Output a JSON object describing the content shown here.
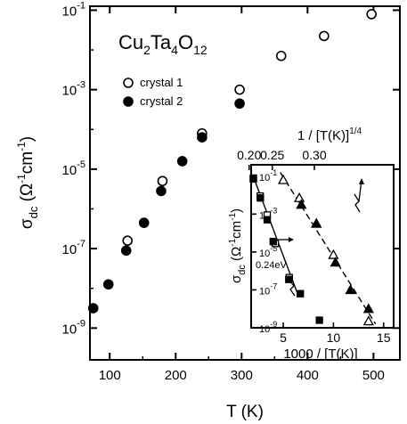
{
  "chart_data": [
    {
      "type": "scatter",
      "title": "",
      "formula_label": {
        "base": [
          "Cu",
          "Ta",
          "O"
        ],
        "subs": [
          "2",
          "4",
          "12"
        ]
      },
      "xlabel": "T (K)",
      "ylabel": {
        "main": "σ",
        "sub": "dc",
        "unit_open": " (Ω",
        "sup1": "-1",
        "unit_mid": "cm",
        "sup2": "-1",
        "unit_close": ")"
      },
      "xlim": [
        70,
        540
      ],
      "ylim_log10": [
        -9.8,
        -0.9
      ],
      "x_ticks": [
        100,
        200,
        300,
        400,
        500
      ],
      "x_tick_labels": [
        "100",
        "200",
        "300",
        "400",
        "500"
      ],
      "y_ticks_log10": [
        -9,
        -7,
        -5,
        -3,
        -1
      ],
      "y_tick_labels": [
        {
          "base": "10",
          "exp": "-9"
        },
        {
          "base": "10",
          "exp": "-7"
        },
        {
          "base": "10",
          "exp": "-5"
        },
        {
          "base": "10",
          "exp": "-3"
        },
        {
          "base": "10",
          "exp": "-1"
        }
      ],
      "legend_position": "upper-left",
      "series": [
        {
          "name": "crystal 1",
          "marker": "open-circle",
          "x": [
            127,
            180,
            240,
            297,
            360,
            425,
            497
          ],
          "y_log10": [
            -6.8,
            -5.3,
            -4.1,
            -3.0,
            -2.15,
            -1.65,
            -1.1
          ]
        },
        {
          "name": "crystal 2",
          "marker": "filled-circle",
          "x": [
            75,
            98,
            125,
            152,
            178,
            210,
            240,
            297
          ],
          "y_log10": [
            -8.5,
            -7.9,
            -7.05,
            -6.35,
            -5.55,
            -4.8,
            -4.2,
            -3.35
          ]
        }
      ]
    },
    {
      "type": "scatter",
      "inset": true,
      "xlabel": "1000 / [T(K)]",
      "ylabel": {
        "main": "σ",
        "sub": "dc",
        "unit_open": " (Ω",
        "sup1": "-1",
        "unit_mid": "cm",
        "sup2": "-1",
        "unit_close": ")"
      },
      "top_xlabel": {
        "text": "1 / [T(K)]",
        "sup": "1/4"
      },
      "xlim": [
        1.8,
        16
      ],
      "ylim_log10": [
        -9,
        -0.4
      ],
      "x_ticks": [
        5,
        10,
        15
      ],
      "x_tick_labels": [
        "5",
        "10",
        "15"
      ],
      "top_ticks": [
        0.2,
        0.25,
        0.3
      ],
      "top_tick_labels": [
        "0.20",
        "0.25",
        "0.30"
      ],
      "y_ticks_log10": [
        -9,
        -7,
        -5,
        -3,
        -1
      ],
      "y_tick_labels": [
        {
          "base": "10",
          "exp": "-9"
        },
        {
          "base": "10",
          "exp": "-7"
        },
        {
          "base": "10",
          "exp": "-5"
        },
        {
          "base": "10",
          "exp": "-3"
        },
        {
          "base": "10",
          "exp": "-1"
        }
      ],
      "annotation": "0.24eV",
      "series": [
        {
          "marker": "open-square",
          "x": [
            2.02,
            2.7,
            3.4,
            4.2,
            5.6
          ],
          "y_log10": [
            -1.1,
            -2.05,
            -3.05,
            -4.55,
            -6.35
          ]
        },
        {
          "marker": "filled-square",
          "x": [
            2.02,
            2.72,
            3.4,
            4.0,
            5.55,
            6.7,
            8.6
          ],
          "y_log10": [
            -1.15,
            -2.15,
            -3.3,
            -4.45,
            -6.45,
            -7.2,
            -8.6
          ]
        },
        {
          "marker": "open-triangle",
          "x": [
            5.0,
            6.6,
            8.3,
            10.0,
            13.5
          ],
          "y_log10": [
            -1.2,
            -2.15,
            -3.5,
            -5.15,
            -8.65
          ]
        },
        {
          "marker": "filled-triangle",
          "x": [
            6.8,
            8.3,
            10.2,
            11.7,
            13.5
          ],
          "y_log10": [
            -2.5,
            -3.5,
            -5.55,
            -7.0,
            -8.0
          ]
        }
      ]
    }
  ]
}
